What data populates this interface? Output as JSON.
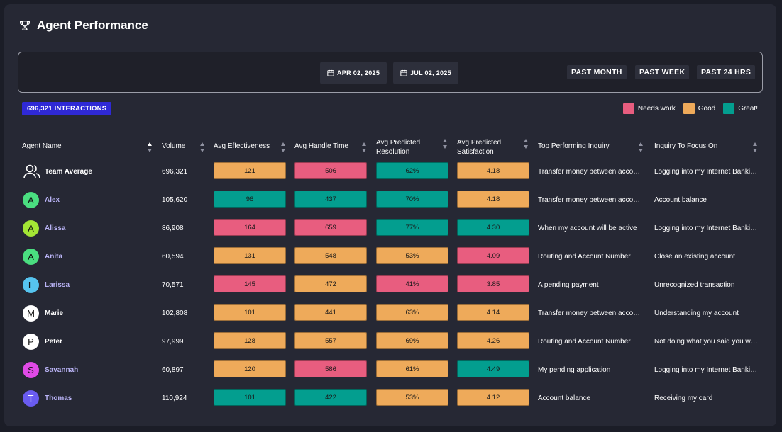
{
  "header": {
    "title": "Agent Performance",
    "icon": "trophy-icon"
  },
  "filters": {
    "start_date": "APR 02, 2025",
    "end_date": "JUL 02, 2025",
    "ranges": [
      "PAST MONTH",
      "PAST WEEK",
      "PAST 24 HRS"
    ]
  },
  "summary": {
    "interactions_badge": "696,321 INTERACTIONS"
  },
  "legend": [
    {
      "label": "Needs work",
      "color": "#e85d7f"
    },
    {
      "label": "Good",
      "color": "#eeaa5a"
    },
    {
      "label": "Great!",
      "color": "#039e8f"
    }
  ],
  "colors": {
    "needs_work": "#e85d7f",
    "good": "#eeaa5a",
    "great": "#039e8f",
    "accent": "#2f29d6"
  },
  "table": {
    "columns": [
      {
        "label": "Agent Name",
        "sort": "asc"
      },
      {
        "label": "Volume",
        "sort": "none"
      },
      {
        "label": "Avg Effectiveness",
        "sort": "none"
      },
      {
        "label": "Avg Handle Time",
        "sort": "none"
      },
      {
        "label": "Avg Predicted Resolution",
        "sort": "none"
      },
      {
        "label": "Avg Predicted Satisfaction",
        "sort": "none"
      },
      {
        "label": "Top Performing Inquiry",
        "sort": "none"
      },
      {
        "label": "Inquiry To Focus On",
        "sort": "none"
      }
    ],
    "rows": [
      {
        "name": "Team Average",
        "initial": "",
        "avatar_color": "",
        "is_team": true,
        "volume": "696,321",
        "effectiveness": {
          "value": "121",
          "rating": "good"
        },
        "handle_time": {
          "value": "506",
          "rating": "needs_work"
        },
        "resolution": {
          "value": "62%",
          "rating": "great"
        },
        "satisfaction": {
          "value": "4.18",
          "rating": "good"
        },
        "top_inquiry": "Transfer money between accounts",
        "focus_inquiry": "Logging into my Internet Banking"
      },
      {
        "name": "Alex",
        "initial": "A",
        "avatar_color": "#4ade80",
        "is_team": false,
        "volume": "105,620",
        "effectiveness": {
          "value": "96",
          "rating": "great"
        },
        "handle_time": {
          "value": "437",
          "rating": "great"
        },
        "resolution": {
          "value": "70%",
          "rating": "great"
        },
        "satisfaction": {
          "value": "4.18",
          "rating": "good"
        },
        "top_inquiry": "Transfer money between accounts",
        "focus_inquiry": "Account balance"
      },
      {
        "name": "Alissa",
        "initial": "A",
        "avatar_color": "#a3e635",
        "is_team": false,
        "volume": "86,908",
        "effectiveness": {
          "value": "164",
          "rating": "needs_work"
        },
        "handle_time": {
          "value": "659",
          "rating": "needs_work"
        },
        "resolution": {
          "value": "77%",
          "rating": "great"
        },
        "satisfaction": {
          "value": "4.30",
          "rating": "great"
        },
        "top_inquiry": "When my account will be active",
        "focus_inquiry": "Logging into my Internet Banking"
      },
      {
        "name": "Anita",
        "initial": "A",
        "avatar_color": "#4ade80",
        "is_team": false,
        "volume": "60,594",
        "effectiveness": {
          "value": "131",
          "rating": "good"
        },
        "handle_time": {
          "value": "548",
          "rating": "good"
        },
        "resolution": {
          "value": "53%",
          "rating": "good"
        },
        "satisfaction": {
          "value": "4.09",
          "rating": "needs_work"
        },
        "top_inquiry": "Routing and Account Number",
        "focus_inquiry": "Close an existing account"
      },
      {
        "name": "Larissa",
        "initial": "L",
        "avatar_color": "#56c4ef",
        "is_team": false,
        "volume": "70,571",
        "effectiveness": {
          "value": "145",
          "rating": "needs_work"
        },
        "handle_time": {
          "value": "472",
          "rating": "good"
        },
        "resolution": {
          "value": "41%",
          "rating": "needs_work"
        },
        "satisfaction": {
          "value": "3.85",
          "rating": "needs_work"
        },
        "top_inquiry": "A pending payment",
        "focus_inquiry": "Unrecognized transaction"
      },
      {
        "name": "Marie",
        "initial": "M",
        "avatar_color": "#ffffff",
        "is_team": false,
        "volume": "102,808",
        "effectiveness": {
          "value": "101",
          "rating": "good"
        },
        "handle_time": {
          "value": "441",
          "rating": "good"
        },
        "resolution": {
          "value": "63%",
          "rating": "good"
        },
        "satisfaction": {
          "value": "4.14",
          "rating": "good"
        },
        "top_inquiry": "Transfer money between accounts",
        "focus_inquiry": "Understanding my account"
      },
      {
        "name": "Peter",
        "initial": "P",
        "avatar_color": "#ffffff",
        "is_team": false,
        "volume": "97,999",
        "effectiveness": {
          "value": "128",
          "rating": "good"
        },
        "handle_time": {
          "value": "557",
          "rating": "good"
        },
        "resolution": {
          "value": "69%",
          "rating": "good"
        },
        "satisfaction": {
          "value": "4.26",
          "rating": "good"
        },
        "top_inquiry": "Routing and Account Number",
        "focus_inquiry": "Not doing what you said you would"
      },
      {
        "name": "Savannah",
        "initial": "S",
        "avatar_color": "#e04ae6",
        "is_team": false,
        "volume": "60,897",
        "effectiveness": {
          "value": "120",
          "rating": "good"
        },
        "handle_time": {
          "value": "586",
          "rating": "needs_work"
        },
        "resolution": {
          "value": "61%",
          "rating": "good"
        },
        "satisfaction": {
          "value": "4.49",
          "rating": "great"
        },
        "top_inquiry": "My pending application",
        "focus_inquiry": "Logging into my Internet Banking"
      },
      {
        "name": "Thomas",
        "initial": "T",
        "avatar_color": "#6a5cf0",
        "is_team": false,
        "volume": "110,924",
        "effectiveness": {
          "value": "101",
          "rating": "great"
        },
        "handle_time": {
          "value": "422",
          "rating": "great"
        },
        "resolution": {
          "value": "53%",
          "rating": "good"
        },
        "satisfaction": {
          "value": "4.12",
          "rating": "good"
        },
        "top_inquiry": "Account balance",
        "focus_inquiry": "Receiving my card"
      }
    ]
  }
}
